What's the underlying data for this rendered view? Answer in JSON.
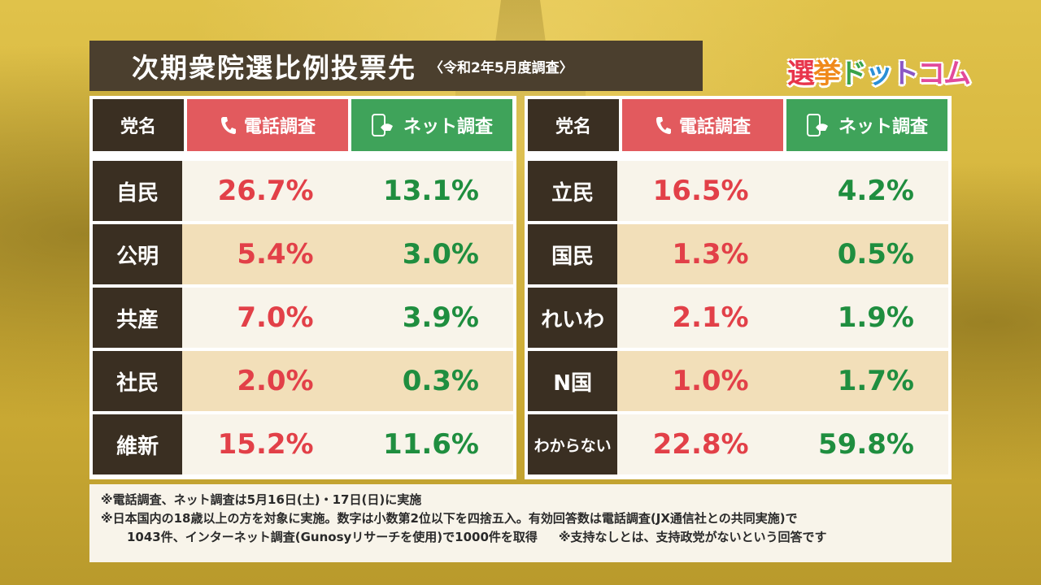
{
  "title": {
    "main": "次期衆院選比例投票先",
    "sub": "〈令和2年5月度調査〉"
  },
  "logo": {
    "chars": [
      "選",
      "挙",
      "ド",
      "ッ",
      "ト",
      "コム"
    ]
  },
  "headers": {
    "party": "党名",
    "phone": "電話調査",
    "net": "ネット調査"
  },
  "left_rows": [
    {
      "party": "自民",
      "phone": "26.7%",
      "net": "13.1%"
    },
    {
      "party": "公明",
      "phone": "5.4%",
      "net": "3.0%"
    },
    {
      "party": "共産",
      "phone": "7.0%",
      "net": "3.9%"
    },
    {
      "party": "社民",
      "phone": "2.0%",
      "net": "0.3%"
    },
    {
      "party": "維新",
      "phone": "15.2%",
      "net": "11.6%"
    }
  ],
  "right_rows": [
    {
      "party": "立民",
      "phone": "16.5%",
      "net": "4.2%"
    },
    {
      "party": "国民",
      "phone": "1.3%",
      "net": "0.5%"
    },
    {
      "party": "れいわ",
      "phone": "2.1%",
      "net": "1.9%"
    },
    {
      "party": "N国",
      "phone": "1.0%",
      "net": "1.7%"
    },
    {
      "party": "わからない",
      "phone": "22.8%",
      "net": "59.8%"
    }
  ],
  "notes": {
    "line1": "※電話調査、ネット調査は5月16日(土)・17日(日)に実施",
    "line2": "※日本国内の18歳以上の方を対象に実施。数字は小数第2位以下を四捨五入。有効回答数は電話調査(JX通信社との共同実施)で",
    "line3a": "1043件、インターネット調査(Gunosyリサーチを使用)で1000件を取得",
    "line3b": "※支持なしとは、支持政党がないという回答です"
  },
  "colors": {
    "phone_header": "#e25a5e",
    "net_header": "#3fa35a",
    "party_bg": "#3a2f22",
    "phone_value": "#e24048",
    "net_value": "#1f8e3f"
  }
}
